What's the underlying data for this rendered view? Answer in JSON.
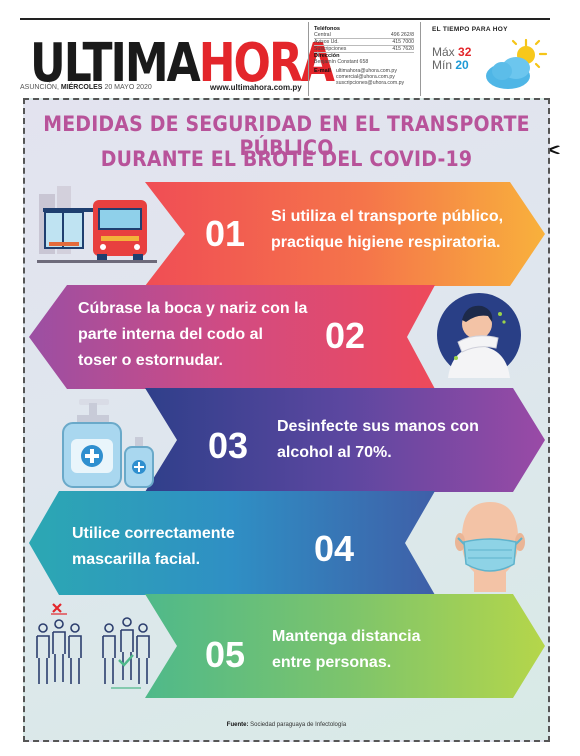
{
  "masthead": {
    "logo_part1": "ULTIMA",
    "logo_part2": "HORA",
    "dateline_city": "ASUNCIÓN,",
    "dateline_day": "MIÉRCOLES",
    "dateline_date": "20 MAYO 2020",
    "website": "www.ultimahora.com.py",
    "contacts": {
      "phones_heading": "Teléfonos",
      "phones": [
        {
          "label": "Central",
          "value": "496 262/8"
        },
        {
          "label": "Avisos Ud.",
          "value": "415 7000"
        },
        {
          "label": "Suscripciones",
          "value": "415 7620"
        }
      ],
      "address_heading": "Dirección",
      "address": "Benjamín Constant 658",
      "email_heading": "E-mail",
      "emails": [
        "ultimahora@uhora.com.py",
        "comercial@uhora.com.py",
        "suscripciones@uhora.com.py"
      ]
    },
    "weather": {
      "title": "EL TIEMPO PARA HOY",
      "max_label": "Máx",
      "max_value": "32",
      "min_label": "Mín",
      "min_value": "20",
      "icon": "sun-cloud-icon"
    }
  },
  "infographic": {
    "title_line1": "MEDIDAS DE SEGURIDAD EN EL TRANSPORTE PÚBLICO",
    "title_line2": "DURANTE EL BROTE DEL COVID-19",
    "items": [
      {
        "number": "01",
        "line1": "Si utiliza el transporte público,",
        "line2": "practique higiene respiratoria.",
        "icon": "bus-stop-icon"
      },
      {
        "number": "02",
        "line1": "Cúbrase la boca y nariz con la",
        "line2": "parte interna del codo al",
        "line3": "toser o estornudar.",
        "icon": "sneezing-person-icon"
      },
      {
        "number": "03",
        "line1": "Desinfecte sus manos con",
        "line2": "alcohol al 70%.",
        "icon": "sanitizer-bottle-icon"
      },
      {
        "number": "04",
        "line1": "Utilice correctamente",
        "line2": "mascarilla facial.",
        "icon": "face-mask-icon"
      },
      {
        "number": "05",
        "line1": "Mantenga distancia",
        "line2": "entre personas.",
        "icon": "social-distance-icon"
      }
    ],
    "source_label": "Fuente:",
    "source_text": "Sociedad paraguaya de Infectología"
  },
  "colors": {
    "brand_red": "#e3262b",
    "title_pink": "#b8539a",
    "min_blue": "#1e9ad6"
  }
}
